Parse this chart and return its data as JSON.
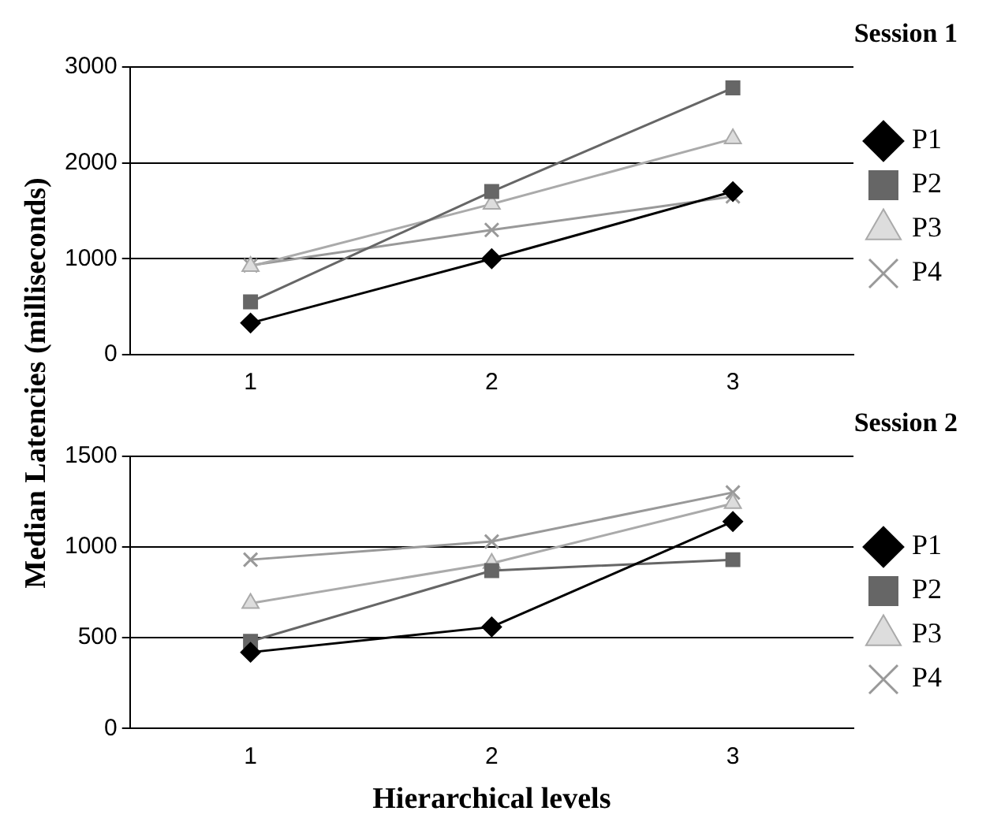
{
  "chart_data": [
    {
      "type": "line",
      "title": "Session 1",
      "ylabel": "Median Latencies (milliseconds)",
      "categories": [
        "1",
        "2",
        "3"
      ],
      "ylim": [
        0,
        3000
      ],
      "yticks": [
        0,
        1000,
        2000,
        3000
      ],
      "grid": "y",
      "legend": "right",
      "series": [
        {
          "name": "P1",
          "color": "#000000",
          "marker": "diamond",
          "values": [
            330,
            1000,
            1700
          ]
        },
        {
          "name": "P2",
          "color": "#666666",
          "marker": "square",
          "values": [
            550,
            1700,
            2780
          ]
        },
        {
          "name": "P3",
          "color": "#aaaaaa",
          "marker": "triangle",
          "values": [
            920,
            1570,
            2250
          ]
        },
        {
          "name": "P4",
          "color": "#999999",
          "marker": "cross",
          "values": [
            930,
            1300,
            1650
          ]
        }
      ]
    },
    {
      "type": "line",
      "title": "Session 2",
      "xlabel": "Hierarchical levels",
      "categories": [
        "1",
        "2",
        "3"
      ],
      "ylim": [
        0,
        1500
      ],
      "yticks": [
        0,
        500,
        1000,
        1500
      ],
      "grid": "y",
      "legend": "right",
      "series": [
        {
          "name": "P1",
          "color": "#000000",
          "marker": "diamond",
          "values": [
            420,
            560,
            1140
          ]
        },
        {
          "name": "P2",
          "color": "#666666",
          "marker": "square",
          "values": [
            480,
            870,
            930
          ]
        },
        {
          "name": "P3",
          "color": "#aaaaaa",
          "marker": "triangle",
          "values": [
            690,
            910,
            1240
          ]
        },
        {
          "name": "P4",
          "color": "#999999",
          "marker": "cross",
          "values": [
            930,
            1030,
            1300
          ]
        }
      ]
    }
  ]
}
